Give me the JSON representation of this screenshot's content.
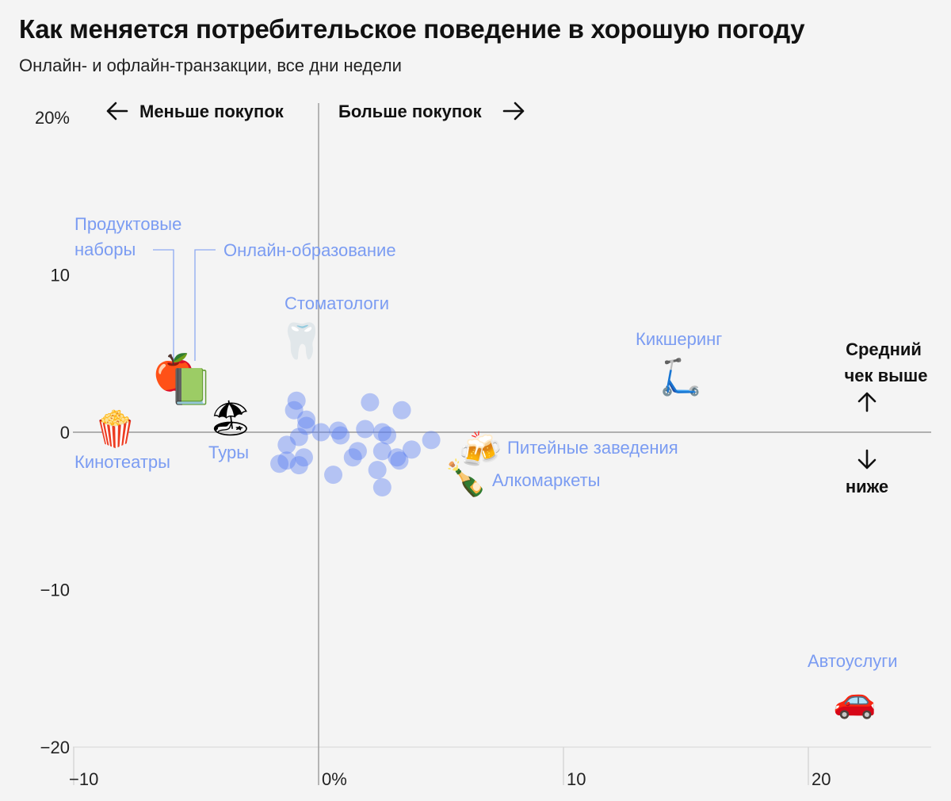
{
  "header": {
    "title": "Как меняется потребительское поведение в хорошую погоду",
    "subtitle": "Онлайн- и офлайн-транзакции, все дни недели"
  },
  "colors": {
    "bubble": "#5b7ff0",
    "label": "#7b9cf2",
    "axis": "#999999"
  },
  "direction_labels": {
    "less": "Меньше покупок",
    "more": "Больше покупок",
    "check_higher_line1": "Средний",
    "check_higher_line2": "чек выше",
    "check_lower": "ниже"
  },
  "chart_data": {
    "type": "scatter",
    "xlim": [
      -10,
      25
    ],
    "ylim": [
      -20,
      20
    ],
    "x_ticks": [
      {
        "value": -10,
        "label": "−10"
      },
      {
        "value": 0,
        "label": "0%"
      },
      {
        "value": 10,
        "label": "10"
      },
      {
        "value": 20,
        "label": "20"
      }
    ],
    "y_ticks": [
      {
        "value": 20,
        "label": "20%"
      },
      {
        "value": 10,
        "label": "10"
      },
      {
        "value": 0,
        "label": "0"
      },
      {
        "value": -10,
        "label": "−10"
      },
      {
        "value": -20,
        "label": "−20"
      }
    ],
    "highlighted": [
      {
        "name": "Продуктовые наборы",
        "label_line1": "Продуктовые",
        "label_line2": "наборы",
        "x": -5.9,
        "y": 3.9,
        "icon": "apple-icon",
        "glyph": "🍎"
      },
      {
        "name": "Онлайн-образование",
        "label_line1": "Онлайн-образование",
        "label_line2": "",
        "x": -5.2,
        "y": 3.0,
        "icon": "book-icon",
        "glyph": "📗"
      },
      {
        "name": "Стоматологи",
        "label_line1": "Стоматологи",
        "label_line2": "",
        "x": -0.7,
        "y": 5.9,
        "icon": "tooth-icon",
        "glyph": "🦷"
      },
      {
        "name": "Кинотеатры",
        "label_line1": "Кинотеатры",
        "label_line2": "",
        "x": -8.3,
        "y": 0.3,
        "icon": "popcorn-icon",
        "glyph": "🍿"
      },
      {
        "name": "Туры",
        "label_line1": "Туры",
        "label_line2": "",
        "x": -3.6,
        "y": 1.0,
        "icon": "beach-icon",
        "glyph": "🏖"
      },
      {
        "name": "Кикшеринг",
        "label_line1": "Кикшеринг",
        "label_line2": "",
        "x": 14.8,
        "y": 3.6,
        "icon": "scooter-icon",
        "glyph": "🛴"
      },
      {
        "name": "Питейные заведения",
        "label_line1": "Питейные заведения",
        "label_line2": "",
        "x": 6.6,
        "y": -1.0,
        "icon": "beer-icon",
        "glyph": "🍻"
      },
      {
        "name": "Алкомаркеты",
        "label_line1": "Алкомаркеты",
        "label_line2": "",
        "x": 6.0,
        "y": -2.8,
        "icon": "champagne-icon",
        "glyph": "🍾"
      },
      {
        "name": "Автоуслуги",
        "label_line1": "Автоуслуги",
        "label_line2": "",
        "x": 21.9,
        "y": -16.9,
        "icon": "car-icon",
        "glyph": "🚗"
      }
    ],
    "points": [
      {
        "x": -0.9,
        "y": 2.0
      },
      {
        "x": -1.0,
        "y": 1.4
      },
      {
        "x": -0.5,
        "y": 0.8
      },
      {
        "x": -0.5,
        "y": 0.4
      },
      {
        "x": -0.8,
        "y": -0.3
      },
      {
        "x": -1.3,
        "y": -0.8
      },
      {
        "x": -0.6,
        "y": -1.6
      },
      {
        "x": -1.3,
        "y": -1.8
      },
      {
        "x": -0.8,
        "y": -2.1
      },
      {
        "x": -1.6,
        "y": -2.0
      },
      {
        "x": 0.1,
        "y": 0.0
      },
      {
        "x": 0.8,
        "y": 0.1
      },
      {
        "x": 0.9,
        "y": -0.2
      },
      {
        "x": 0.6,
        "y": -2.7
      },
      {
        "x": 2.1,
        "y": 1.9
      },
      {
        "x": 3.4,
        "y": 1.4
      },
      {
        "x": 1.9,
        "y": 0.2
      },
      {
        "x": 2.6,
        "y": 0.0
      },
      {
        "x": 2.8,
        "y": -0.2
      },
      {
        "x": 4.6,
        "y": -0.5
      },
      {
        "x": 1.6,
        "y": -1.2
      },
      {
        "x": 1.4,
        "y": -1.6
      },
      {
        "x": 2.6,
        "y": -1.2
      },
      {
        "x": 3.8,
        "y": -1.1
      },
      {
        "x": 3.2,
        "y": -1.6
      },
      {
        "x": 3.3,
        "y": -1.8
      },
      {
        "x": 2.4,
        "y": -2.4
      },
      {
        "x": 2.6,
        "y": -3.5
      }
    ]
  }
}
